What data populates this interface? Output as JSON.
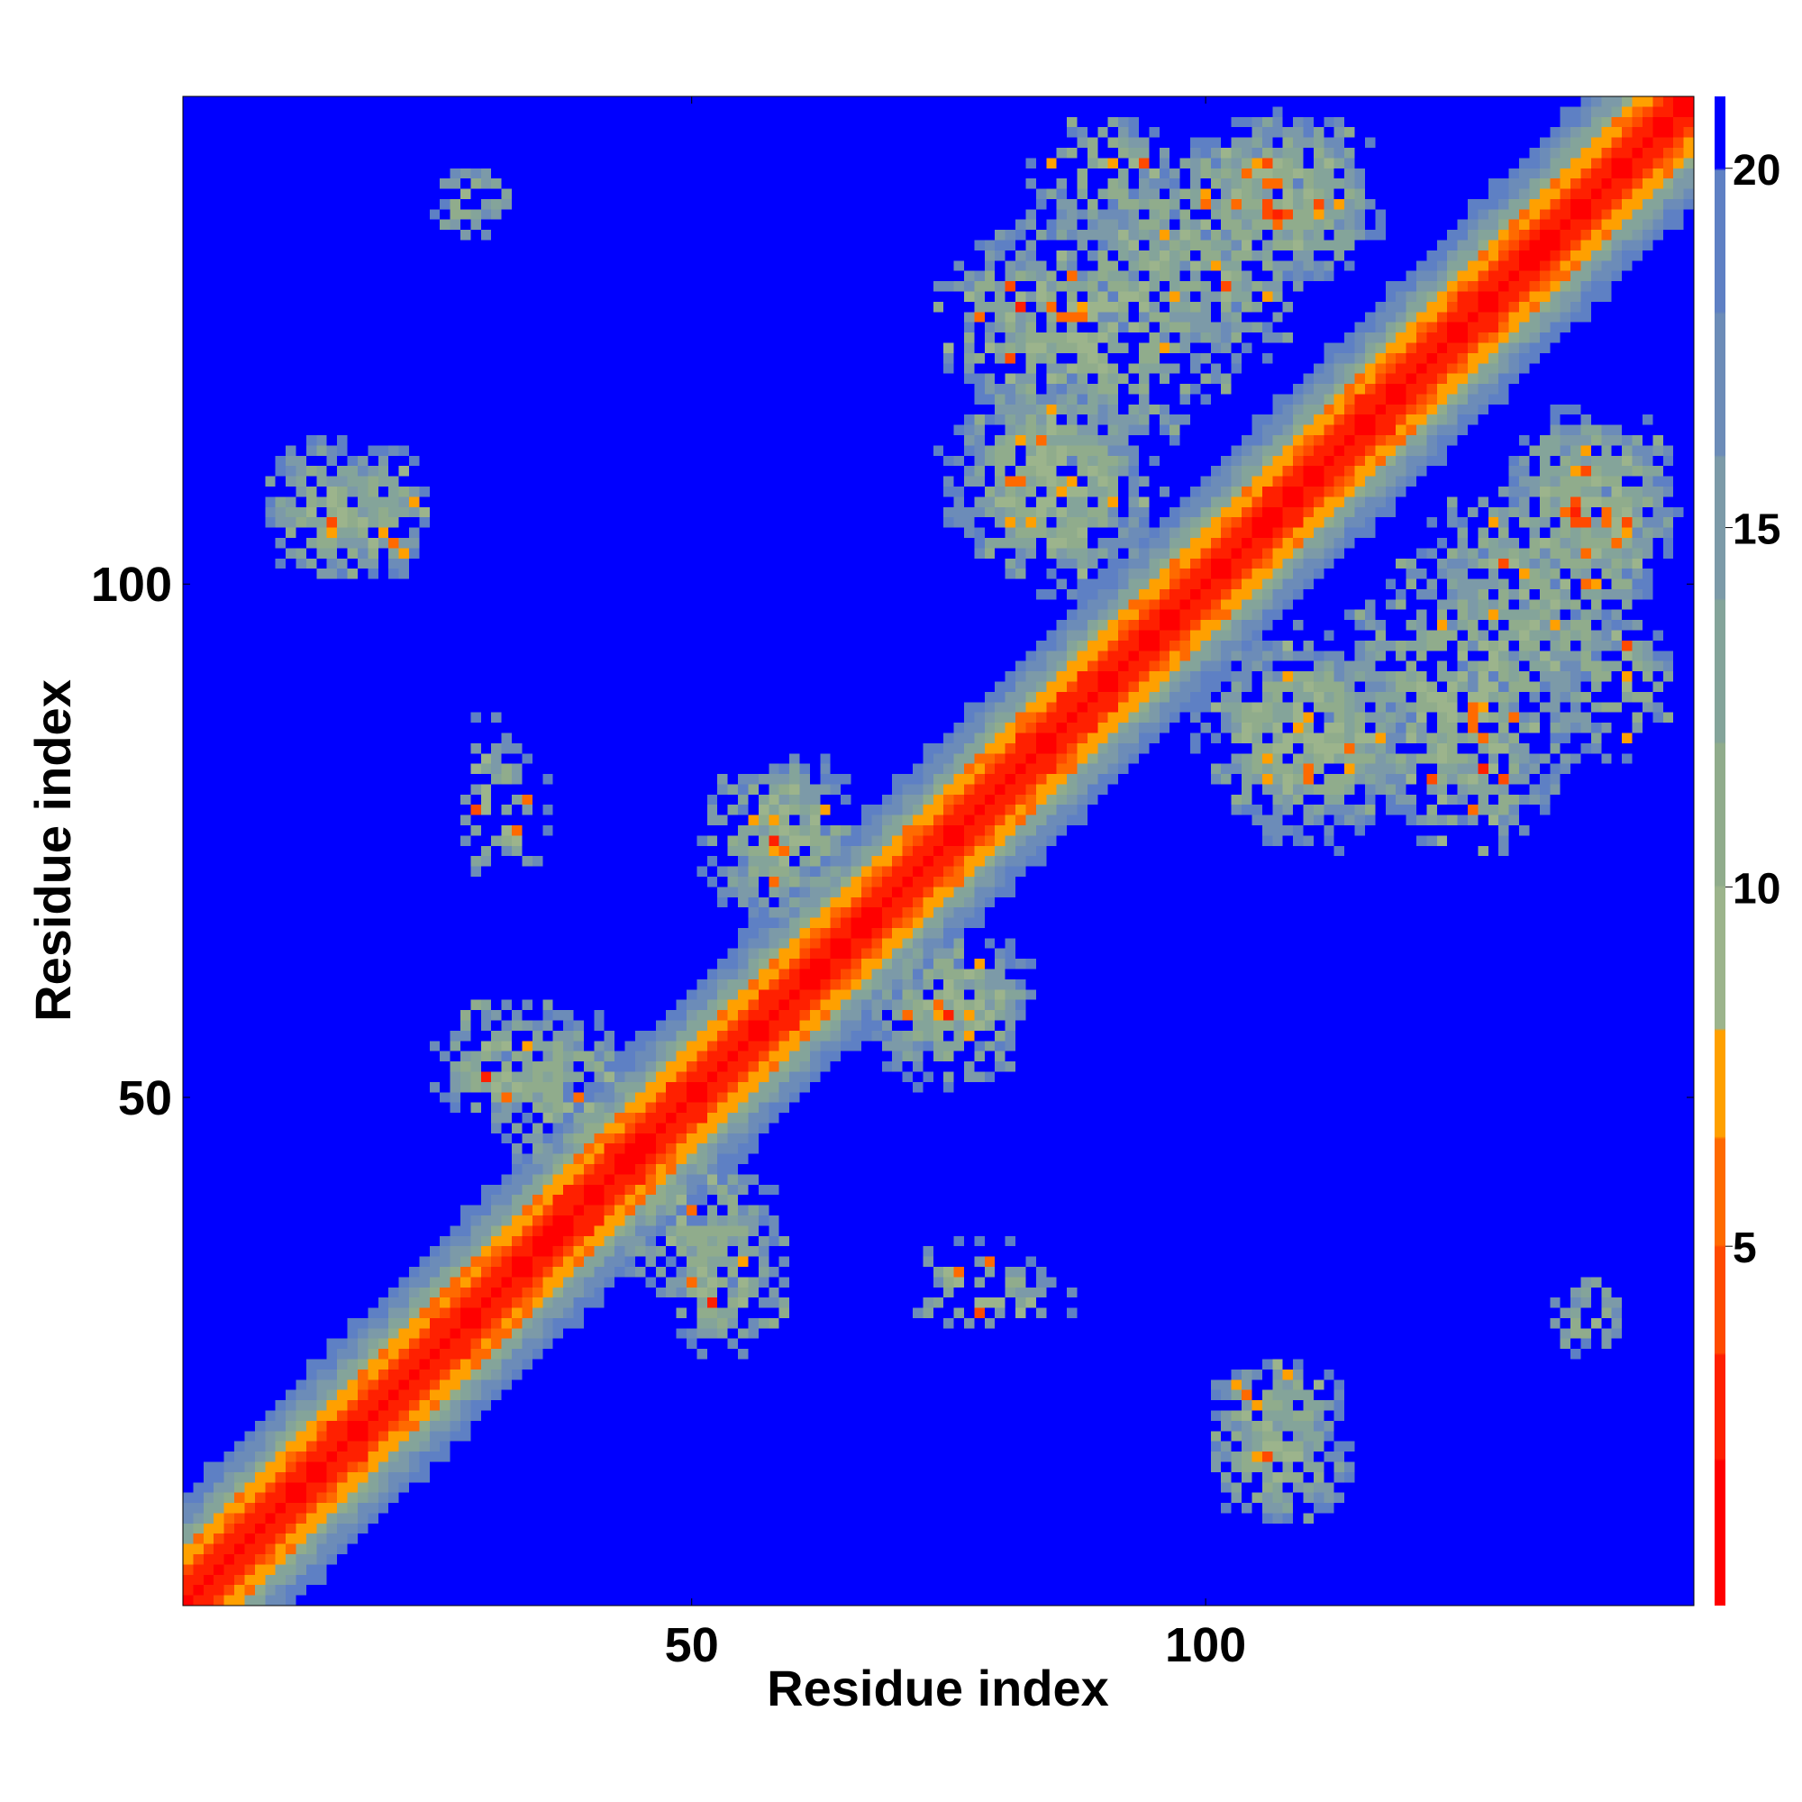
{
  "chart_data": {
    "type": "heatmap",
    "title": "",
    "description_values": "symmetric residue-residue distance map, diagonal values near 0 (red), off-diagonal far pairs saturate at about 21 (blue)",
    "n_residues": 147,
    "xlabel": "Residue index",
    "ylabel": "Residue index",
    "x_ticks": [
      50,
      100
    ],
    "y_ticks": [
      50,
      100
    ],
    "xlim": [
      0.5,
      147.5
    ],
    "ylim": [
      0.5,
      147.5
    ],
    "value_range": [
      0,
      21
    ],
    "colorbar": {
      "ticks": [
        5,
        10,
        15,
        20
      ],
      "colors": [
        {
          "max": 2,
          "color": "#ff0000"
        },
        {
          "max": 3.5,
          "color": "#ff2000"
        },
        {
          "max": 5,
          "color": "#ff4a00"
        },
        {
          "max": 6.5,
          "color": "#ff6a00"
        },
        {
          "max": 8,
          "color": "#ffa000"
        },
        {
          "max": 10,
          "color": "#9cb48c"
        },
        {
          "max": 12,
          "color": "#90ac8c"
        },
        {
          "max": 14,
          "color": "#84a49a"
        },
        {
          "max": 16,
          "color": "#7c9aa8"
        },
        {
          "max": 18,
          "color": "#6c8cb8"
        },
        {
          "max": 20,
          "color": "#5e80c4"
        },
        {
          "max": 999,
          "color": "#0000ff"
        }
      ]
    },
    "contact_blobs": [
      {
        "cx": 14,
        "cy": 107,
        "rx": 6,
        "ry": 8,
        "density": 0.85
      },
      {
        "cx": 29,
        "cy": 138,
        "rx": 4,
        "ry": 3,
        "density": 0.6
      },
      {
        "cx": 30,
        "cy": 80,
        "rx": 4,
        "ry": 8,
        "density": 0.35
      },
      {
        "cx": 32,
        "cy": 53,
        "rx": 8,
        "ry": 7,
        "density": 0.8
      },
      {
        "cx": 50,
        "cy": 38,
        "rx": 9,
        "ry": 8,
        "density": 0.75
      },
      {
        "cx": 57,
        "cy": 76,
        "rx": 7,
        "ry": 9,
        "density": 0.7
      },
      {
        "cx": 75,
        "cy": 60,
        "rx": 9,
        "ry": 7,
        "density": 0.7
      },
      {
        "cx": 77,
        "cy": 32,
        "rx": 7,
        "ry": 5,
        "density": 0.35
      },
      {
        "cx": 90,
        "cy": 125,
        "rx": 14,
        "ry": 14,
        "density": 0.65
      },
      {
        "cx": 85,
        "cy": 110,
        "rx": 12,
        "ry": 10,
        "density": 0.6
      },
      {
        "cx": 106,
        "cy": 138,
        "rx": 10,
        "ry": 8,
        "density": 0.8
      },
      {
        "cx": 110,
        "cy": 85,
        "rx": 12,
        "ry": 10,
        "density": 0.6
      },
      {
        "cx": 107,
        "cy": 19,
        "rx": 7,
        "ry": 6,
        "density": 0.85
      },
      {
        "cx": 132,
        "cy": 100,
        "rx": 12,
        "ry": 12,
        "density": 0.7
      },
      {
        "cx": 138,
        "cy": 109,
        "rx": 9,
        "ry": 9,
        "density": 0.75
      },
      {
        "cx": 137,
        "cy": 28,
        "rx": 4,
        "ry": 4,
        "density": 0.6
      },
      {
        "cx": 140,
        "cy": 90,
        "rx": 6,
        "ry": 8,
        "density": 0.55
      },
      {
        "cx": 125,
        "cy": 82,
        "rx": 10,
        "ry": 9,
        "density": 0.55
      }
    ]
  }
}
